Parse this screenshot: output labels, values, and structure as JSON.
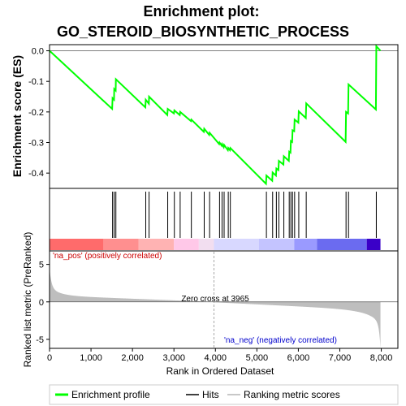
{
  "chart_data": {
    "type": "line",
    "title_line1": "Enrichment plot:",
    "title_line2": "GO_STEROID_BIOSYNTHETIC_PROCESS",
    "ylabel_top": "Enrichment score (ES)",
    "ylabel_bottom": "Ranked list metric (PreRanked)",
    "xlabel": "Rank in Ordered Dataset",
    "xlim": [
      0,
      8400
    ],
    "x_ticks": [
      0,
      1000,
      2000,
      3000,
      4000,
      5000,
      6000,
      7000,
      8000
    ],
    "x_tick_labels": [
      "0",
      "1,000",
      "2,000",
      "3,000",
      "4,000",
      "5,000",
      "6,000",
      "7,000",
      "8,000"
    ],
    "es_ylim": [
      -0.45,
      0.02
    ],
    "es_ticks": [
      0.0,
      -0.1,
      -0.2,
      -0.3,
      -0.4
    ],
    "es_tick_labels": [
      "0.0",
      "-0.1",
      "-0.2",
      "-0.3",
      "-0.4"
    ],
    "metric_ylim": [
      -6.2,
      6.8
    ],
    "metric_ticks": [
      5,
      0,
      -5
    ],
    "metric_tick_labels": [
      "5",
      "0",
      "-5"
    ],
    "zero_cross_rank": 3965,
    "zero_cross_label": "Zero cross at 3965",
    "pos_label": "'na_pos' (positively correlated)",
    "neg_label": "'na_neg' (negatively correlated)",
    "total_ranks": 7980,
    "hits": [
      1520,
      1560,
      1600,
      2320,
      2400,
      2850,
      3010,
      3150,
      3420,
      3730,
      3860,
      4100,
      4160,
      4210,
      4310,
      4360,
      5230,
      5380,
      5470,
      5530,
      5650,
      5780,
      5820,
      5860,
      5910,
      6010,
      6190,
      7150,
      7210,
      7880
    ],
    "es_curve": [
      [
        0,
        0.0
      ],
      [
        1510,
        -0.19
      ],
      [
        1520,
        -0.155
      ],
      [
        1555,
        -0.16
      ],
      [
        1560,
        -0.125
      ],
      [
        1595,
        -0.13
      ],
      [
        1600,
        -0.093
      ],
      [
        2310,
        -0.185
      ],
      [
        2320,
        -0.16
      ],
      [
        2395,
        -0.173
      ],
      [
        2400,
        -0.15
      ],
      [
        2840,
        -0.21
      ],
      [
        2850,
        -0.19
      ],
      [
        3000,
        -0.205
      ],
      [
        3010,
        -0.195
      ],
      [
        3140,
        -0.21
      ],
      [
        3150,
        -0.2
      ],
      [
        3410,
        -0.23
      ],
      [
        3420,
        -0.225
      ],
      [
        3720,
        -0.265
      ],
      [
        3730,
        -0.255
      ],
      [
        3850,
        -0.275
      ],
      [
        3860,
        -0.268
      ],
      [
        4090,
        -0.305
      ],
      [
        4100,
        -0.3
      ],
      [
        4150,
        -0.31
      ],
      [
        4160,
        -0.305
      ],
      [
        4200,
        -0.315
      ],
      [
        4210,
        -0.308
      ],
      [
        4300,
        -0.325
      ],
      [
        4310,
        -0.318
      ],
      [
        4350,
        -0.325
      ],
      [
        4360,
        -0.318
      ],
      [
        5220,
        -0.435
      ],
      [
        5230,
        -0.408
      ],
      [
        5370,
        -0.425
      ],
      [
        5380,
        -0.398
      ],
      [
        5460,
        -0.408
      ],
      [
        5470,
        -0.385
      ],
      [
        5520,
        -0.39
      ],
      [
        5530,
        -0.36
      ],
      [
        5640,
        -0.372
      ],
      [
        5650,
        -0.345
      ],
      [
        5770,
        -0.36
      ],
      [
        5780,
        -0.33
      ],
      [
        5810,
        -0.333
      ],
      [
        5820,
        -0.295
      ],
      [
        5850,
        -0.298
      ],
      [
        5860,
        -0.26
      ],
      [
        5900,
        -0.263
      ],
      [
        5910,
        -0.225
      ],
      [
        6000,
        -0.235
      ],
      [
        6010,
        -0.198
      ],
      [
        6180,
        -0.22
      ],
      [
        6190,
        -0.172
      ],
      [
        7140,
        -0.298
      ],
      [
        7150,
        -0.2
      ],
      [
        7200,
        -0.205
      ],
      [
        7210,
        -0.11
      ],
      [
        7870,
        -0.192
      ],
      [
        7880,
        0.015
      ],
      [
        7980,
        0.0
      ]
    ],
    "heat_segments": [
      {
        "from": 0,
        "to": 1300,
        "color": "#ff6b6b"
      },
      {
        "from": 1300,
        "to": 2150,
        "color": "#ff8f8f"
      },
      {
        "from": 2150,
        "to": 3000,
        "color": "#ffb3b3"
      },
      {
        "from": 3000,
        "to": 3600,
        "color": "#ffc8e8"
      },
      {
        "from": 3600,
        "to": 3965,
        "color": "#f2def0"
      },
      {
        "from": 3965,
        "to": 5050,
        "color": "#d8d8ff"
      },
      {
        "from": 5050,
        "to": 5900,
        "color": "#c4c4ff"
      },
      {
        "from": 5900,
        "to": 6450,
        "color": "#9a9aff"
      },
      {
        "from": 6450,
        "to": 7650,
        "color": "#6b6bf0"
      },
      {
        "from": 7650,
        "to": 7980,
        "color": "#3a00c8"
      }
    ],
    "legend": [
      {
        "label": "Enrichment profile",
        "color": "#00ff00"
      },
      {
        "label": "Hits",
        "color": "#000000"
      },
      {
        "label": "Ranking metric scores",
        "color": "#c8c8c8"
      }
    ],
    "colors": {
      "profile": "#00ff00",
      "hits": "#000000",
      "metric_fill": "#bebebe",
      "zero_line": "#808080",
      "zero_cross_line": "#aaaaaa"
    }
  }
}
